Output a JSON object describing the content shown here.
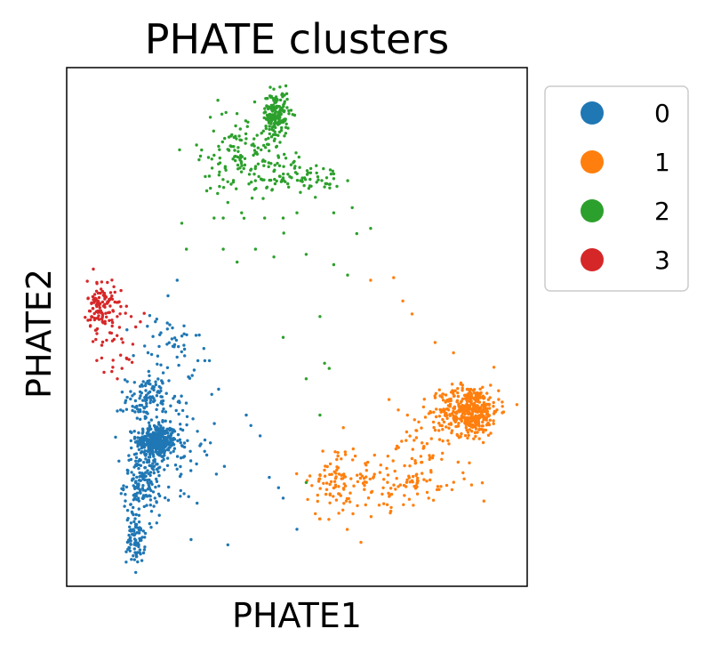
{
  "chart_data": {
    "type": "scatter",
    "title": "PHATE clusters",
    "xlabel": "PHATE1",
    "ylabel": "PHATE2",
    "xlim": [
      0,
      100
    ],
    "ylim": [
      0,
      100
    ],
    "grid": false,
    "ticks": false,
    "legend": {
      "placement": "outside-top-right",
      "entries": [
        "0",
        "1",
        "2",
        "3"
      ]
    },
    "series": [
      {
        "name": "0",
        "color": "#1f77b4",
        "clusters": [
          {
            "points": 320,
            "x": 19.5,
            "y": 28,
            "sx": 2.2,
            "sy": 1.6
          },
          {
            "points": 170,
            "x": 16.5,
            "y": 20,
            "sx": 2.0,
            "sy": 3.0
          },
          {
            "points": 90,
            "x": 15.0,
            "y": 9,
            "sx": 1.0,
            "sy": 2.3
          },
          {
            "points": 110,
            "x": 17.5,
            "y": 36,
            "sx": 2.3,
            "sy": 2.3
          },
          {
            "points": 100,
            "x": 23.0,
            "y": 27,
            "sx": 5.0,
            "sy": 6.0
          },
          {
            "points": 45,
            "x": 22.0,
            "y": 46,
            "sx": 3.5,
            "sy": 3.5
          }
        ],
        "stray_points": [
          [
            30,
            43.5
          ],
          [
            28.5,
            43.5
          ],
          [
            31,
            43.5
          ],
          [
            33,
            38
          ],
          [
            31.5,
            37
          ],
          [
            39,
            33
          ],
          [
            40,
            31
          ],
          [
            42,
            29
          ],
          [
            44,
            21
          ],
          [
            46,
            19
          ],
          [
            47,
            17
          ],
          [
            50,
            11
          ],
          [
            35,
            8
          ],
          [
            27,
            9
          ],
          [
            22,
            56
          ],
          [
            24,
            59
          ]
        ]
      },
      {
        "name": "1",
        "color": "#ff7f0e",
        "clusters": [
          {
            "points": 430,
            "x": 87.5,
            "y": 34,
            "sx": 3.2,
            "sy": 2.4
          },
          {
            "points": 45,
            "x": 78.5,
            "y": 28,
            "sx": 3.0,
            "sy": 3.5
          },
          {
            "points": 120,
            "x": 70,
            "y": 20,
            "sx": 9.0,
            "sy": 2.8
          },
          {
            "points": 70,
            "x": 58.5,
            "y": 20,
            "sx": 2.6,
            "sy": 4.0
          }
        ],
        "stray_points": [
          [
            66,
            59
          ],
          [
            71,
            59.5
          ],
          [
            73,
            55
          ],
          [
            75,
            52.5
          ],
          [
            80,
            47
          ],
          [
            84,
            45
          ],
          [
            70,
            36
          ],
          [
            72,
            34
          ],
          [
            74,
            33
          ],
          [
            76,
            30
          ],
          [
            55,
            13
          ],
          [
            54,
            14
          ]
        ]
      },
      {
        "name": "2",
        "color": "#2ca02c",
        "clusters": [
          {
            "points": 170,
            "x": 45.5,
            "y": 91,
            "sx": 1.4,
            "sy": 2.2
          },
          {
            "points": 90,
            "x": 38,
            "y": 85,
            "sx": 4.5,
            "sy": 3.5
          },
          {
            "points": 70,
            "x": 50,
            "y": 79,
            "sx": 5.0,
            "sy": 1.3
          },
          {
            "points": 60,
            "x": 40,
            "y": 80,
            "sx": 5.5,
            "sy": 4.5
          }
        ],
        "stray_points": [
          [
            32,
            71
          ],
          [
            34,
            71
          ],
          [
            35,
            74
          ],
          [
            38,
            72
          ],
          [
            43,
            71
          ],
          [
            47,
            71
          ],
          [
            50,
            72
          ],
          [
            54,
            75
          ],
          [
            56,
            77
          ],
          [
            58,
            72
          ],
          [
            63,
            68
          ],
          [
            66,
            69
          ],
          [
            62,
            73
          ],
          [
            25,
            70
          ],
          [
            26,
            65
          ],
          [
            34,
            65
          ],
          [
            37,
            62.5
          ],
          [
            41,
            65
          ],
          [
            45,
            63.5
          ],
          [
            52,
            64
          ],
          [
            58,
            62
          ],
          [
            61,
            60
          ],
          [
            55,
            52
          ],
          [
            56,
            43
          ],
          [
            57,
            42
          ],
          [
            52,
            40
          ],
          [
            55,
            33
          ],
          [
            47,
            48
          ],
          [
            52,
            20
          ]
        ]
      },
      {
        "name": "3",
        "color": "#d62728",
        "clusters": [
          {
            "points": 115,
            "x": 7.5,
            "y": 54,
            "sx": 1.5,
            "sy": 2.6
          },
          {
            "points": 30,
            "x": 11,
            "y": 48,
            "sx": 2.4,
            "sy": 4.0
          }
        ],
        "stray_points": [
          [
            13,
            54
          ],
          [
            14,
            52
          ],
          [
            15,
            50
          ],
          [
            16,
            51
          ],
          [
            12,
            42
          ],
          [
            11,
            40
          ],
          [
            13,
            44
          ]
        ]
      }
    ]
  }
}
